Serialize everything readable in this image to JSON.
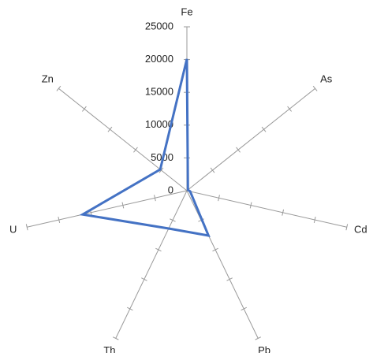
{
  "chart_data": {
    "type": "radar",
    "title": "",
    "axes": [
      "Fe",
      "As",
      "Cd",
      "Pb",
      "Th",
      "U",
      "Zn"
    ],
    "radial_ticks": [
      0,
      5000,
      10000,
      15000,
      20000,
      25000
    ],
    "radial_tick_labels": [
      "0",
      "5000",
      "10000",
      "15000",
      "20000",
      "25000"
    ],
    "rlim": [
      0,
      25000
    ],
    "grid": false,
    "legend": "none",
    "series": [
      {
        "values": [
          20100,
          200,
          500,
          7600,
          6400,
          16300,
          5200
        ],
        "color": "#4472c4"
      }
    ]
  }
}
